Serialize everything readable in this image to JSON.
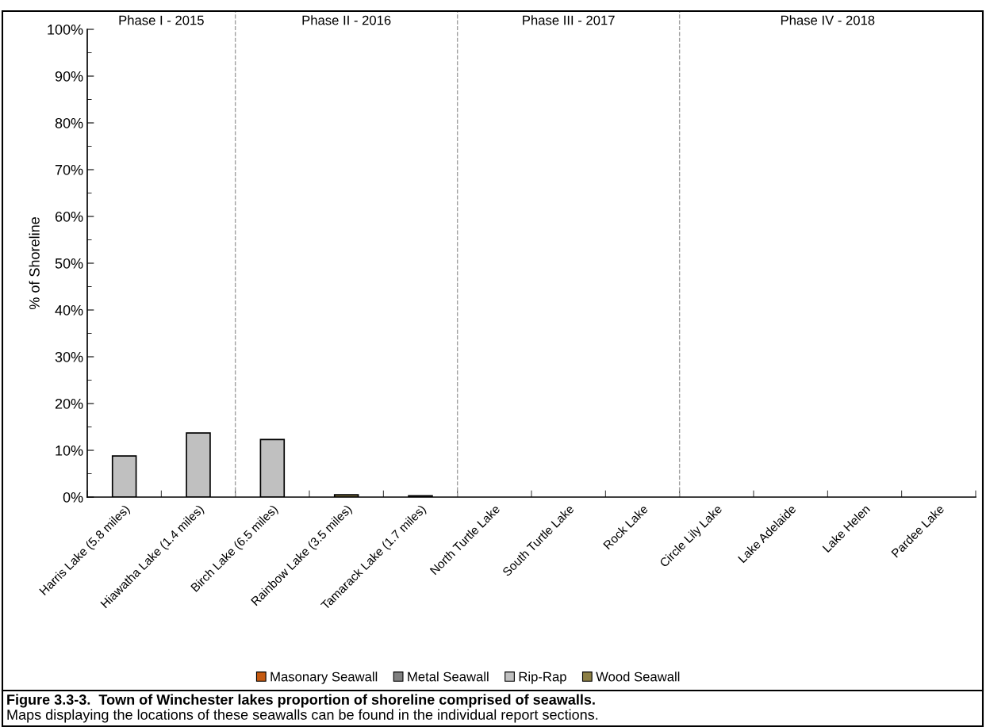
{
  "chart_data": {
    "type": "bar",
    "stacked": true,
    "ylabel": "% of Shoreline",
    "categories": [
      "Harris Lake (5.8 miles)",
      "Hiawatha Lake (1.4 miles)",
      "Birch Lake (6.5 miles)",
      "Rainbow Lake (3.5 miles)",
      "Tamarack Lake (1.7 miles)",
      "North Turtle Lake",
      "South Turtle Lake",
      "Rock Lake",
      "Circle Lily Lake",
      "Lake Adelaide",
      "Lake Helen",
      "Pardee Lake"
    ],
    "series": [
      {
        "name": "Masonary Seawall",
        "color": "#c55a11",
        "values": [
          0,
          0,
          0,
          0,
          0,
          0,
          0,
          0,
          0,
          0,
          0,
          0
        ]
      },
      {
        "name": "Metal Seawall",
        "color": "#808080",
        "values": [
          0,
          0,
          0,
          0,
          0.3,
          0,
          0,
          0,
          0,
          0,
          0,
          0
        ]
      },
      {
        "name": "Rip-Rap",
        "color": "#c0c0c0",
        "values": [
          8.8,
          13.7,
          12.3,
          0,
          0,
          0,
          0,
          0,
          0,
          0,
          0,
          0
        ]
      },
      {
        "name": "Wood Seawall",
        "color": "#8c7f45",
        "values": [
          0,
          0,
          0,
          0.5,
          0,
          0,
          0,
          0,
          0,
          0,
          0,
          0
        ]
      }
    ],
    "ylim": [
      0,
      100
    ],
    "yticks": [
      {
        "value": 0,
        "label": "0%"
      },
      {
        "value": 10,
        "label": "10%"
      },
      {
        "value": 20,
        "label": "20%"
      },
      {
        "value": 30,
        "label": "30%"
      },
      {
        "value": 40,
        "label": "40%"
      },
      {
        "value": 50,
        "label": "50%"
      },
      {
        "value": 60,
        "label": "60%"
      },
      {
        "value": 70,
        "label": "70%"
      },
      {
        "value": 80,
        "label": "80%"
      },
      {
        "value": 90,
        "label": "90%"
      },
      {
        "value": 100,
        "label": "100%"
      }
    ],
    "annotations": [
      "Phase I - 2015",
      "Phase II - 2016",
      "Phase III - 2017",
      "Phase IV - 2018",
      "Figure 3.3-3.  Town of Winchester lakes proportion of shoreline comprised of seawalls.",
      "Maps displaying the locations of these seawalls can be found in the individual report sections."
    ],
    "grid": false,
    "legend": "bottom"
  }
}
